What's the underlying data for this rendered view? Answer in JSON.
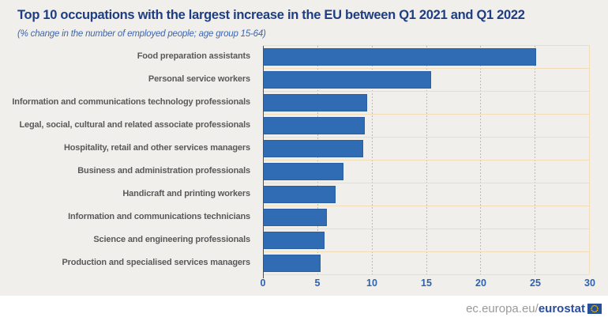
{
  "title": "Top 10 occupations with the largest increase in the EU between Q1 2021 and Q1 2022",
  "subtitle": "(% change in the number of employed people; age group 15-64)",
  "footer": {
    "url_prefix": "ec.europa.eu/",
    "brand": "eurostat",
    "flag_icon": "eu-flag-icon"
  },
  "colors": {
    "background": "#f0efec",
    "bar_fill": "#2f6cb3",
    "bar_border": "#2a5fa6",
    "row_line": "#f2ddb6",
    "grid_dash": "#bdbbb8",
    "axis_line": "#4f4f4f",
    "title_text": "#1e3d82",
    "subtitle_text": "#3c66b0",
    "category_text": "#595959",
    "tick_text": "#2f62ae",
    "footer_gray": "#9a9a9a",
    "footer_brand": "#2b4d9d",
    "flag_blue": "#27509b",
    "flag_stars": "#ffcc00"
  },
  "chart_data": {
    "type": "bar",
    "orientation": "horizontal",
    "title": "Top 10 occupations with the largest increase in the EU between Q1 2021 and Q1 2022",
    "subtitle": "(% change in the number of employed people; age group 15-64)",
    "categories": [
      "Food preparation assistants",
      "Personal service workers",
      "Information and communications technology professionals",
      "Legal, social, cultural and related associate professionals",
      "Hospitality, retail and other services managers",
      "Business and administration professionals",
      "Handicraft and printing workers",
      "Information and communications technicians",
      "Science and engineering professionals",
      "Production and specialised services managers"
    ],
    "values": [
      25.1,
      15.5,
      9.6,
      9.4,
      9.2,
      7.4,
      6.7,
      5.9,
      5.7,
      5.3
    ],
    "xlabel": "",
    "ylabel": "",
    "xlim": [
      0,
      30
    ],
    "xticks": [
      0,
      5,
      10,
      15,
      20,
      25,
      30
    ],
    "grid": "vertical-dashed",
    "legend": "none"
  }
}
